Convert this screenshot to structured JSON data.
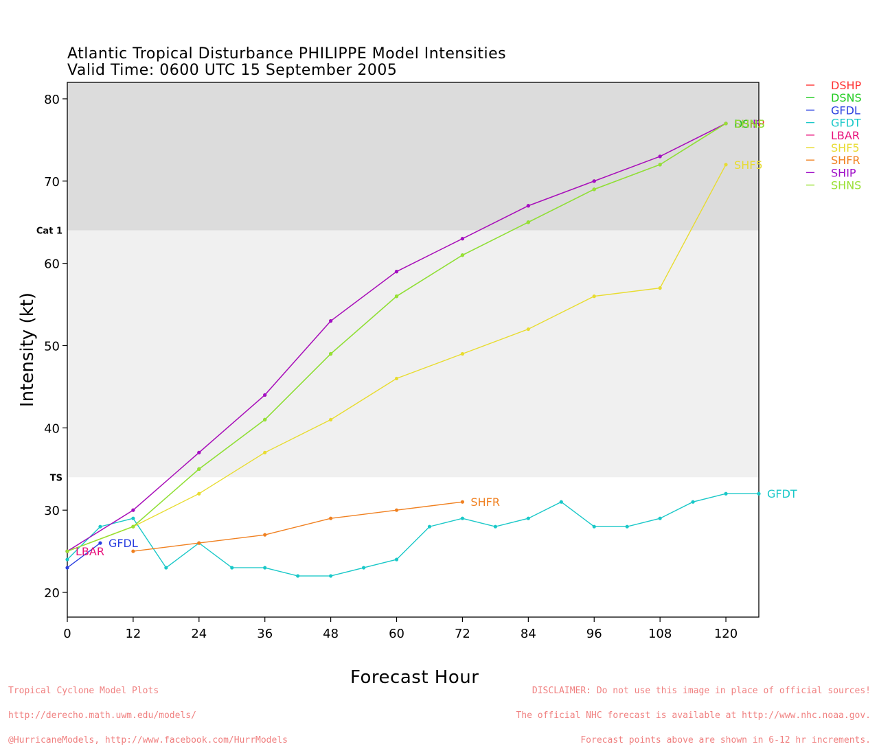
{
  "header": {
    "title_line1": "Atlantic Tropical Disturbance PHILIPPE Model Intensities",
    "title_line2": "Valid Time: 0600 UTC 15 September 2005"
  },
  "footer": {
    "left_lines": [
      "Tropical Cyclone Model Plots",
      "http://derecho.math.uwm.edu/models/",
      "@HurricaneModels, http://www.facebook.com/HurrModels"
    ],
    "right_lines": [
      "DISCLAIMER: Do not use this image in place of official sources!",
      "The official NHC forecast is available at http://www.nhc.noaa.gov.",
      "Forecast points above are shown in 6-12 hr increments."
    ]
  },
  "colors": {
    "cat1_band": "#dcdcdc",
    "ts_band": "#f0f0f0",
    "frame": "#000000",
    "footer_text": "#f08080"
  },
  "chart_data": {
    "type": "line",
    "xlabel": "Forecast Hour",
    "ylabel": "Intensity (kt)",
    "xlim": [
      0,
      126
    ],
    "ylim": [
      17,
      82
    ],
    "xticks": [
      0,
      12,
      24,
      36,
      48,
      60,
      72,
      84,
      96,
      108,
      120
    ],
    "yticks": [
      20,
      30,
      40,
      50,
      60,
      70,
      80
    ],
    "grid": false,
    "legend_position": "right",
    "thresholds": [
      {
        "label": "Cat 1",
        "value": 64,
        "band_color": "#dcdcdc"
      },
      {
        "label": "TS",
        "value": 34,
        "band_color": "#f0f0f0"
      }
    ],
    "series": [
      {
        "name": "DSHP",
        "color": "#ff3333",
        "end_label": "DSHP",
        "x": [
          0,
          12,
          24,
          36,
          48,
          60,
          72,
          84,
          96,
          108,
          120
        ],
        "y": [
          25,
          30,
          37,
          44,
          53,
          59,
          63,
          67,
          70,
          73,
          77
        ]
      },
      {
        "name": "DSNS",
        "color": "#22cc22",
        "end_label": "DSNS",
        "x": [
          0,
          12,
          24,
          36,
          48,
          60,
          72,
          84,
          96,
          108,
          120
        ],
        "y": [
          25,
          28,
          35,
          41,
          49,
          56,
          61,
          65,
          69,
          72,
          77
        ]
      },
      {
        "name": "GFDL",
        "color": "#2a3fe0",
        "end_label": "GFDL",
        "x": [
          0,
          6
        ],
        "y": [
          23,
          26
        ]
      },
      {
        "name": "GFDT",
        "color": "#19c8c8",
        "end_label": "GFDT",
        "x": [
          0,
          6,
          12,
          18,
          24,
          30,
          36,
          42,
          48,
          54,
          60,
          66,
          72,
          78,
          84,
          90,
          96,
          102,
          108,
          114,
          120,
          126
        ],
        "y": [
          24,
          28,
          29,
          23,
          26,
          23,
          23,
          22,
          22,
          23,
          24,
          28,
          29,
          28,
          29,
          31,
          28,
          28,
          29,
          31,
          32,
          32
        ]
      },
      {
        "name": "LBAR",
        "color": "#e8107a",
        "end_label": "LBAR",
        "x": [
          0
        ],
        "y": [
          25
        ]
      },
      {
        "name": "SHF5",
        "color": "#e8dc30",
        "end_label": "SHF5",
        "x": [
          0,
          12,
          24,
          36,
          48,
          60,
          72,
          84,
          96,
          108,
          120
        ],
        "y": [
          25,
          28,
          32,
          37,
          41,
          46,
          49,
          52,
          56,
          57,
          72
        ]
      },
      {
        "name": "SHFR",
        "color": "#f08020",
        "end_label": "SHFR",
        "x": [
          12,
          24,
          36,
          48,
          60,
          72
        ],
        "y": [
          25,
          26,
          27,
          29,
          30,
          31
        ]
      },
      {
        "name": "SHIP",
        "color": "#a010c8",
        "end_label": "SHIP",
        "x": [
          0,
          12,
          24,
          36,
          48,
          60,
          72,
          84,
          96,
          108,
          120
        ],
        "y": [
          25,
          30,
          37,
          44,
          53,
          59,
          63,
          67,
          70,
          73,
          77
        ]
      },
      {
        "name": "SHNS",
        "color": "#99e033",
        "end_label": "SHNS",
        "x": [
          0,
          12,
          24,
          36,
          48,
          60,
          72,
          84,
          96,
          108,
          120
        ],
        "y": [
          25,
          28,
          35,
          41,
          49,
          56,
          61,
          65,
          69,
          72,
          77
        ]
      }
    ],
    "end_labels_shown": [
      {
        "text": "LBAR",
        "series": "LBAR",
        "at": [
          0,
          25
        ]
      },
      {
        "text": "GFDL",
        "series": "GFDL",
        "at": [
          6,
          26
        ]
      },
      {
        "text": "SHFR",
        "series": "SHFR",
        "at": [
          72,
          31
        ]
      },
      {
        "text": "GFDT",
        "series": "GFDT",
        "at": [
          126,
          32
        ]
      },
      {
        "text": "SHF5",
        "series": "SHF5",
        "at": [
          120,
          72
        ]
      },
      {
        "text": "DSHP",
        "series": "DSHP",
        "at": [
          120,
          77
        ]
      },
      {
        "text": "SHIP",
        "series": "SHIP",
        "at": [
          120,
          77
        ]
      },
      {
        "text": "DSNS",
        "series": "DSNS",
        "at": [
          120,
          77
        ]
      },
      {
        "text": "SHNS",
        "series": "SHNS",
        "at": [
          120,
          77
        ]
      }
    ]
  }
}
